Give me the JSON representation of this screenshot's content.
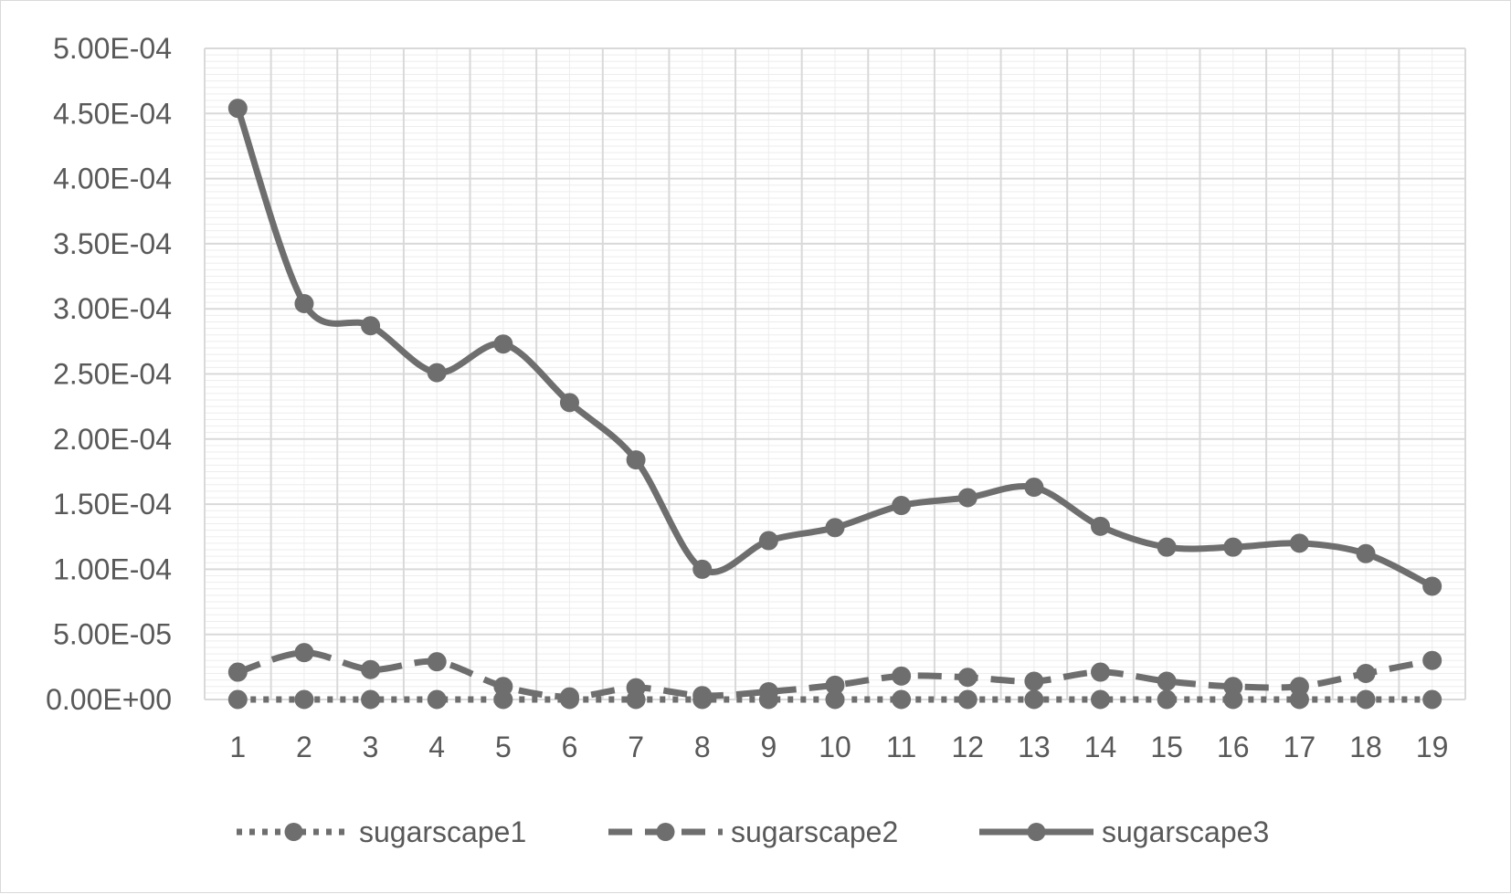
{
  "chart_data": {
    "type": "line",
    "title": "",
    "xlabel": "",
    "ylabel": "",
    "categories": [
      "1",
      "2",
      "3",
      "4",
      "5",
      "6",
      "7",
      "8",
      "9",
      "10",
      "11",
      "12",
      "13",
      "14",
      "15",
      "16",
      "17",
      "18",
      "19"
    ],
    "ylim": [
      0,
      0.0005
    ],
    "y_ticks": [
      0,
      5e-05,
      0.0001,
      0.00015,
      0.0002,
      0.00025,
      0.0003,
      0.00035,
      0.0004,
      0.00045,
      0.0005
    ],
    "y_tick_labels": [
      "0.00E+00",
      "5.00E-05",
      "1.00E-04",
      "1.50E-04",
      "2.00E-04",
      "2.50E-04",
      "3.00E-04",
      "3.50E-04",
      "4.00E-04",
      "4.50E-04",
      "5.00E-04"
    ],
    "grid": true,
    "smoothed": true,
    "legend_position": "bottom",
    "series": [
      {
        "name": "sugarscape1",
        "style": "dotted",
        "values": [
          0,
          0,
          0,
          0,
          0,
          0,
          0,
          0,
          0,
          0,
          0,
          0,
          0,
          0,
          0,
          0,
          0,
          0,
          0
        ]
      },
      {
        "name": "sugarscape2",
        "style": "dashed",
        "values": [
          2.1e-05,
          3.6e-05,
          2.3e-05,
          2.9e-05,
          1e-05,
          2e-06,
          9e-06,
          3e-06,
          6e-06,
          1.1e-05,
          1.8e-05,
          1.7e-05,
          1.4e-05,
          2.1e-05,
          1.4e-05,
          1e-05,
          1e-05,
          2e-05,
          3e-05
        ]
      },
      {
        "name": "sugarscape3",
        "style": "solid",
        "values": [
          0.000454,
          0.000304,
          0.000287,
          0.000251,
          0.000273,
          0.000228,
          0.000184,
          0.0001,
          0.000122,
          0.000132,
          0.000149,
          0.000155,
          0.000163,
          0.000133,
          0.000117,
          0.000117,
          0.00012,
          0.000112,
          8.7e-05
        ]
      }
    ]
  },
  "colors": {
    "series": "#6e6e6e",
    "marker": "#6e6e6e",
    "grid_major": "#d9d9d9",
    "grid_minor": "#ededed",
    "text": "#595959",
    "border": "#d9d9d9"
  }
}
